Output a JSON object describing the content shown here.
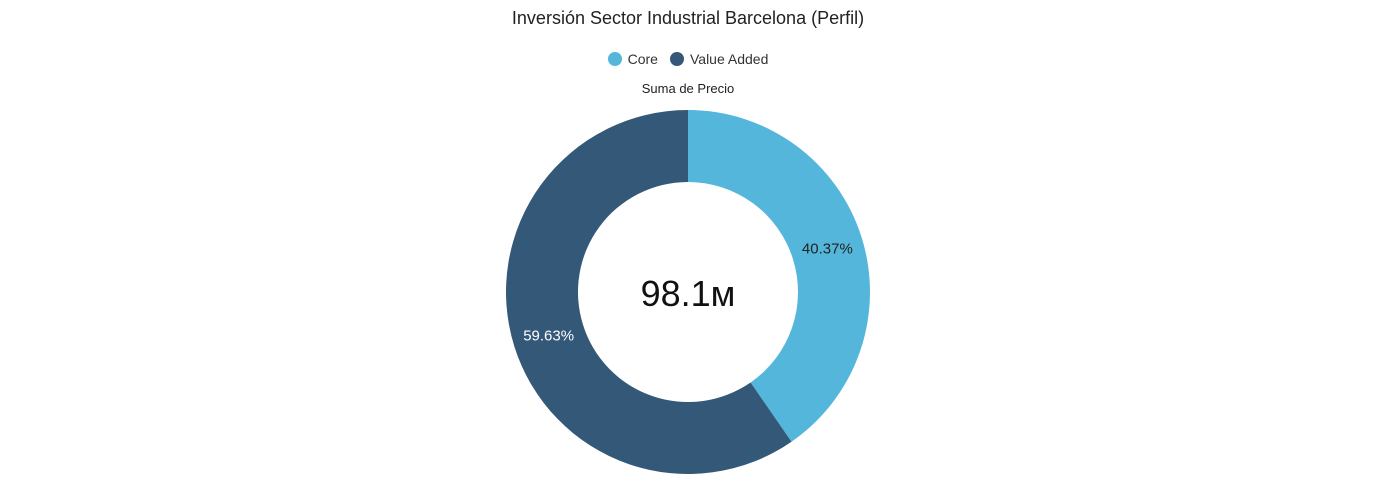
{
  "chart_data": {
    "type": "pie",
    "title": "Inversión Sector Industrial Barcelona (Perfil)",
    "measure": "Suma de Precio",
    "total_label": "98.1м",
    "legend_position": "top-center",
    "series": [
      {
        "name": "Core",
        "value": 40.37,
        "label": "40.37%",
        "color": "#55b6db",
        "label_color": "#222222"
      },
      {
        "name": "Value Added",
        "value": 59.63,
        "label": "59.63%",
        "color": "#345878",
        "label_color": "#ffffff"
      }
    ]
  }
}
